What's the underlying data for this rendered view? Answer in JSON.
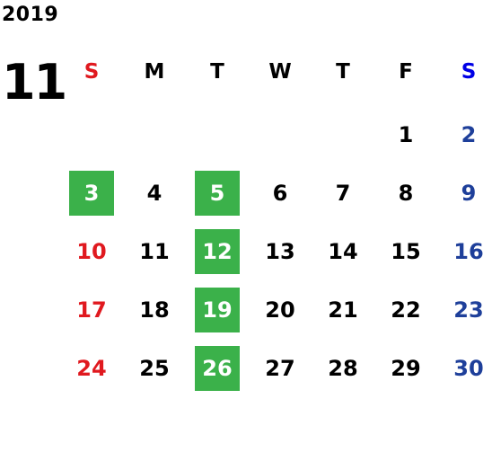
{
  "year": "2019",
  "month": "11",
  "weekdays": [
    {
      "label": "S",
      "kind": "sun"
    },
    {
      "label": "M",
      "kind": "day"
    },
    {
      "label": "T",
      "kind": "day"
    },
    {
      "label": "W",
      "kind": "day"
    },
    {
      "label": "T",
      "kind": "day"
    },
    {
      "label": "F",
      "kind": "day"
    },
    {
      "label": "S",
      "kind": "sat"
    }
  ],
  "weeks": [
    [
      "",
      "",
      "",
      "",
      "",
      "1",
      "2"
    ],
    [
      "3",
      "4",
      "5",
      "6",
      "7",
      "8",
      "9"
    ],
    [
      "10",
      "11",
      "12",
      "13",
      "14",
      "15",
      "16"
    ],
    [
      "17",
      "18",
      "19",
      "20",
      "21",
      "22",
      "23"
    ],
    [
      "24",
      "25",
      "26",
      "27",
      "28",
      "29",
      "30"
    ]
  ],
  "highlighted_days": [
    "3",
    "5",
    "12",
    "19",
    "26"
  ],
  "colors": {
    "sunday": "#e0191f",
    "saturday": "#1e3f9a",
    "saturday_header": "#0000e6",
    "highlight": "#3bb14a",
    "text": "#000000"
  }
}
